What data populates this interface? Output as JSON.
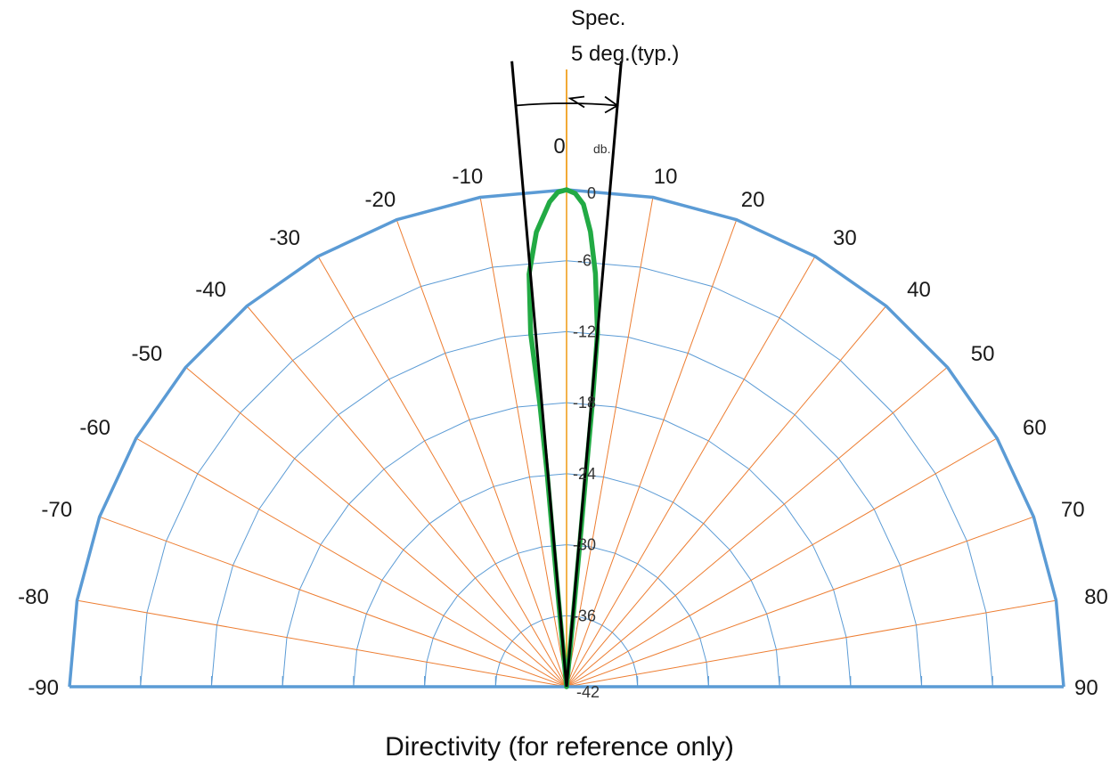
{
  "chart_data": {
    "type": "polar",
    "title": "Directivity (for reference only)",
    "radial_unit": "db.",
    "radial_ticks": [
      0,
      -6,
      -12,
      -18,
      -24,
      -30,
      -36,
      -42
    ],
    "radial_tick_labels": [
      "0",
      "-6",
      "-12",
      "-18",
      "-24",
      "-30",
      "-36",
      "-42"
    ],
    "radial_range": [
      -42,
      0
    ],
    "angle_range": [
      -90,
      90
    ],
    "angle_ticks": [
      -90,
      -80,
      -70,
      -60,
      -50,
      -40,
      -30,
      -20,
      -10,
      0,
      10,
      20,
      30,
      40,
      50,
      60,
      70,
      80,
      90
    ],
    "angle_tick_labels": [
      "-90",
      "-80",
      "-70",
      "-60",
      "-50",
      "-40",
      "-30",
      "-20",
      "-10",
      "0",
      "10",
      "20",
      "30",
      "40",
      "50",
      "60",
      "70",
      "80",
      "90"
    ],
    "spec_annotation": [
      "Spec.",
      "5 deg.(typ.)"
    ],
    "spec_half_angle_deg": 5,
    "grid": true,
    "series": [
      {
        "color": "#22aa44",
        "points": [
          {
            "angle": 0,
            "db": 0
          },
          {
            "angle": 1,
            "db": -0.3
          },
          {
            "angle": 2,
            "db": -1.2
          },
          {
            "angle": 3,
            "db": -3.5
          },
          {
            "angle": 4,
            "db": -7
          },
          {
            "angle": 5,
            "db": -12
          },
          {
            "angle": 5.2,
            "db": -18
          },
          {
            "angle": 5.2,
            "db": -24
          },
          {
            "angle": 5.3,
            "db": -30
          },
          {
            "angle": 5.3,
            "db": -36
          },
          {
            "angle": 5,
            "db": -42
          },
          {
            "angle": -5,
            "db": -42
          },
          {
            "angle": -5.3,
            "db": -36
          },
          {
            "angle": -5.3,
            "db": -30
          },
          {
            "angle": -5.2,
            "db": -24
          },
          {
            "angle": -5.4,
            "db": -18
          },
          {
            "angle": -5.8,
            "db": -12
          },
          {
            "angle": -5.2,
            "db": -7
          },
          {
            "angle": -3.8,
            "db": -3.5
          },
          {
            "angle": -2,
            "db": -1
          },
          {
            "angle": -1,
            "db": -0.2
          }
        ]
      }
    ]
  },
  "colors": {
    "outer_boundary": "#5b9bd5",
    "ring_grid": "#5b9bd5",
    "spoke_grid": "#ed7d31",
    "center_axis": "#f0a020",
    "pattern": "#22aa44",
    "spec_lines": "#000000",
    "text": "#1a1a1a"
  }
}
